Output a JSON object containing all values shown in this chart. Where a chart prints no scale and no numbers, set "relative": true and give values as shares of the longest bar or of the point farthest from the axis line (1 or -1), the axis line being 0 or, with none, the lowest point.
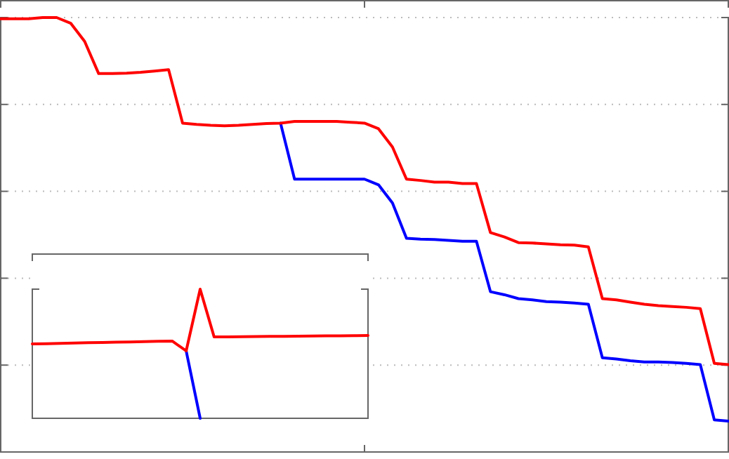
{
  "chart_data": [
    {
      "type": "line",
      "relative": true,
      "grid": "y",
      "line_style": "solid",
      "categories": [
        null,
        null,
        null,
        null,
        null,
        null,
        null,
        null,
        null,
        null,
        null,
        null,
        null,
        null,
        null,
        null,
        null,
        null,
        null,
        null,
        null,
        null,
        null,
        null,
        null,
        null,
        null,
        null,
        null,
        null,
        null,
        null,
        null,
        null,
        null,
        null,
        null,
        null,
        null,
        null,
        null,
        null,
        null,
        null,
        null,
        null,
        null,
        null,
        null,
        null,
        null,
        null,
        null
      ],
      "series": [
        {
          "color": "#0000ff",
          "values": [
            null,
            null,
            null,
            null,
            null,
            null,
            null,
            null,
            null,
            null,
            null,
            null,
            null,
            null,
            null,
            null,
            null,
            null,
            null,
            null,
            0.757,
            0.628,
            0.628,
            0.628,
            0.628,
            0.628,
            0.628,
            0.615,
            0.573,
            0.492,
            0.49,
            0.489,
            0.487,
            0.485,
            0.485,
            0.369,
            0.362,
            0.353,
            0.35,
            0.346,
            0.345,
            0.343,
            0.34,
            0.217,
            0.214,
            0.21,
            0.207,
            0.207,
            0.206,
            0.204,
            0.201,
            0.074,
            0.071
          ]
        },
        {
          "color": "#ff0000",
          "values": [
            0.997,
            0.997,
            0.997,
            1,
            1,
            0.987,
            0.945,
            0.871,
            0.871,
            0.872,
            0.874,
            0.877,
            0.88,
            0.757,
            0.754,
            0.752,
            0.751,
            0.752,
            0.754,
            0.756,
            0.757,
            0.761,
            0.761,
            0.761,
            0.761,
            0.759,
            0.757,
            0.744,
            0.702,
            0.628,
            0.625,
            0.621,
            0.621,
            0.618,
            0.618,
            0.505,
            0.495,
            0.482,
            0.481,
            0.479,
            0.477,
            0.476,
            0.472,
            0.353,
            0.35,
            0.345,
            0.34,
            0.337,
            0.335,
            0.333,
            0.33,
            0.204,
            0.201
          ]
        }
      ]
    },
    {
      "type": "line",
      "relative": true,
      "line_style": "solid",
      "categories": [
        null,
        null,
        null,
        null,
        null,
        null,
        null,
        null,
        null,
        null,
        null,
        null,
        null,
        null,
        null,
        null,
        null,
        null,
        null,
        null,
        null,
        null,
        null,
        null,
        null
      ],
      "series": [
        {
          "color": "#0000ff",
          "values": [
            null,
            null,
            null,
            null,
            null,
            null,
            null,
            null,
            null,
            null,
            null,
            0.522,
            0,
            null,
            null,
            null,
            null,
            null,
            null,
            null,
            null,
            null,
            null,
            null,
            null
          ]
        },
        {
          "color": "#ff0000",
          "values": [
            0.576,
            0.578,
            0.58,
            0.583,
            0.585,
            0.587,
            0.589,
            0.591,
            0.594,
            0.596,
            0.598,
            0.522,
            1,
            0.63,
            0.631,
            0.632,
            0.633,
            0.634,
            0.635,
            0.636,
            0.637,
            0.638,
            0.639,
            0.64,
            0.641
          ]
        }
      ]
    }
  ]
}
